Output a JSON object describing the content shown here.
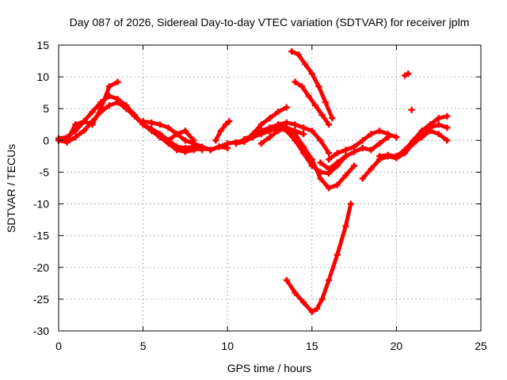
{
  "chart_data": {
    "type": "scatter",
    "title": "Day 087 of 2026, Sidereal Day-to-day VTEC variation (SDTVAR) for receiver jplm",
    "xlabel": "GPS time / hours",
    "ylabel": "SDTVAR / TECUs",
    "xlim": [
      0,
      25
    ],
    "ylim": [
      -30,
      15
    ],
    "xticks": [
      0,
      5,
      10,
      15,
      20,
      25
    ],
    "yticks": [
      -30,
      -25,
      -20,
      -15,
      -10,
      -5,
      0,
      5,
      10,
      15
    ],
    "grid": true,
    "legend": "none",
    "marker_color": "#ff0000",
    "series": [
      {
        "x": [
          0.0,
          0.5,
          1.0,
          1.5,
          2.0,
          2.5,
          3.0,
          3.5,
          4.0,
          4.5,
          5.0,
          5.5,
          6.0,
          6.5,
          7.0,
          7.5,
          8.0,
          8.5,
          9.0,
          9.5,
          10.0
        ],
        "y": [
          0.3,
          0.5,
          1.5,
          3.0,
          4.5,
          6.0,
          7.0,
          6.5,
          5.5,
          4.0,
          2.5,
          1.5,
          0.5,
          -0.5,
          -1.5,
          -1.8,
          -1.5,
          -1.2,
          -1.5,
          -1.0,
          -0.5
        ]
      },
      {
        "x": [
          0.0,
          0.5,
          1.0,
          1.5,
          2.0,
          2.5,
          3.0,
          3.5,
          4.0,
          4.5,
          5.0,
          5.5,
          6.0,
          6.5,
          7.0,
          7.5,
          8.0,
          8.5
        ],
        "y": [
          0.0,
          -0.3,
          0.5,
          1.5,
          3.0,
          4.5,
          5.5,
          6.0,
          5.0,
          3.8,
          2.5,
          1.8,
          1.0,
          0.0,
          -1.0,
          -1.2,
          -1.0,
          -1.5
        ]
      },
      {
        "x": [
          0.0,
          0.5,
          1.0,
          1.5,
          2.0,
          2.5,
          3.0,
          3.5
        ],
        "y": [
          0.2,
          0.0,
          2.5,
          3.0,
          2.5,
          5.0,
          8.5,
          9.2
        ]
      },
      {
        "x": [
          5.0,
          5.5,
          6.0,
          6.5,
          7.0,
          7.5,
          8.0,
          8.5,
          9.0,
          9.5,
          10.0
        ],
        "y": [
          3.0,
          2.8,
          2.5,
          2.0,
          1.0,
          0.0,
          -0.5,
          -1.0,
          -1.5,
          -1.0,
          -1.2
        ]
      },
      {
        "x": [
          6.0,
          6.5,
          7.0,
          7.5,
          8.0
        ],
        "y": [
          0.5,
          0.0,
          1.0,
          1.5,
          0.0
        ]
      },
      {
        "x": [
          9.3,
          9.6,
          9.9,
          10.1
        ],
        "y": [
          0.0,
          1.5,
          2.5,
          3.0
        ]
      },
      {
        "x": [
          10.0,
          10.5,
          11.0,
          11.5,
          12.0,
          12.5,
          13.0,
          13.5,
          14.0,
          14.5,
          15.0,
          15.5,
          16.0,
          16.5,
          17.0
        ],
        "y": [
          -0.5,
          -0.3,
          0.0,
          0.5,
          1.0,
          1.5,
          2.0,
          1.5,
          0.0,
          -2.0,
          -4.0,
          -5.0,
          -5.2,
          -4.0,
          -2.5
        ]
      },
      {
        "x": [
          10.5,
          11.0,
          11.5,
          12.0,
          12.5,
          13.0,
          13.5,
          14.0,
          14.5,
          15.0,
          15.5,
          16.0,
          16.5,
          17.0,
          17.5
        ],
        "y": [
          -0.5,
          -0.2,
          0.5,
          1.2,
          1.8,
          2.5,
          2.0,
          1.0,
          -1.0,
          -3.0,
          -6.0,
          -7.5,
          -7.0,
          -5.5,
          -4.0
        ]
      },
      {
        "x": [
          11.0,
          11.5,
          12.0,
          12.5,
          13.0,
          13.5,
          14.0,
          14.5,
          15.0,
          15.5,
          16.0
        ],
        "y": [
          0.2,
          0.8,
          1.5,
          2.0,
          2.5,
          2.8,
          2.5,
          2.0,
          1.5,
          0.0,
          -2.0
        ]
      },
      {
        "x": [
          11.5,
          12.0,
          12.5,
          13.0,
          13.5
        ],
        "y": [
          1.0,
          2.5,
          3.5,
          4.5,
          5.2
        ]
      },
      {
        "x": [
          12.0,
          12.5,
          13.0,
          13.5,
          14.0,
          14.5
        ],
        "y": [
          -0.5,
          0.5,
          1.5,
          2.0,
          1.5,
          1.0
        ]
      },
      {
        "x": [
          13.8,
          14.2,
          14.6,
          15.0,
          15.4,
          15.8,
          16.2
        ],
        "y": [
          14.0,
          13.5,
          12.0,
          10.5,
          8.5,
          6.0,
          3.5
        ]
      },
      {
        "x": [
          14.0,
          14.4,
          14.8,
          15.2,
          15.6,
          16.0
        ],
        "y": [
          9.2,
          8.5,
          7.0,
          5.5,
          4.0,
          2.5
        ]
      },
      {
        "x": [
          13.5,
          14.0,
          14.5,
          15.0,
          15.3,
          15.6,
          16.0,
          16.5,
          17.0,
          17.3
        ],
        "y": [
          -22.0,
          -24.0,
          -25.5,
          -27.0,
          -26.5,
          -25.0,
          -22.0,
          -18.0,
          -13.5,
          -10.0
        ]
      },
      {
        "x": [
          15.5,
          16.0,
          16.5,
          17.0,
          17.5,
          18.0,
          18.5,
          19.0,
          19.5
        ],
        "y": [
          -3.5,
          -4.5,
          -3.5,
          -2.5,
          -1.8,
          -1.2,
          -1.5,
          -0.5,
          0.5
        ]
      },
      {
        "x": [
          16.0,
          16.5,
          17.0,
          17.5,
          18.0,
          18.5,
          19.0,
          19.5,
          20.0
        ],
        "y": [
          -3.0,
          -2.0,
          -1.5,
          -1.0,
          0.0,
          1.0,
          1.5,
          1.0,
          0.5
        ]
      },
      {
        "x": [
          18.0,
          18.5,
          19.0,
          19.5,
          20.0,
          20.5,
          21.0,
          21.5,
          22.0,
          22.5,
          23.0
        ],
        "y": [
          -6.0,
          -4.5,
          -3.0,
          -2.5,
          -2.8,
          -2.0,
          -0.5,
          1.0,
          2.0,
          2.5,
          2.0
        ]
      },
      {
        "x": [
          19.0,
          19.5,
          20.0,
          20.5,
          21.0,
          21.5,
          22.0,
          22.5,
          23.0
        ],
        "y": [
          -2.5,
          -2.3,
          -2.5,
          -1.5,
          -0.5,
          0.5,
          1.5,
          1.0,
          0.0
        ]
      },
      {
        "x": [
          20.5,
          21.0,
          21.5,
          22.0,
          22.5,
          23.0
        ],
        "y": [
          -1.5,
          0.0,
          1.5,
          2.5,
          3.5,
          3.8
        ]
      },
      {
        "x": [
          20.5,
          20.7
        ],
        "y": [
          10.2,
          10.5
        ]
      },
      {
        "x": [
          20.9
        ],
        "y": [
          4.8
        ]
      }
    ]
  }
}
